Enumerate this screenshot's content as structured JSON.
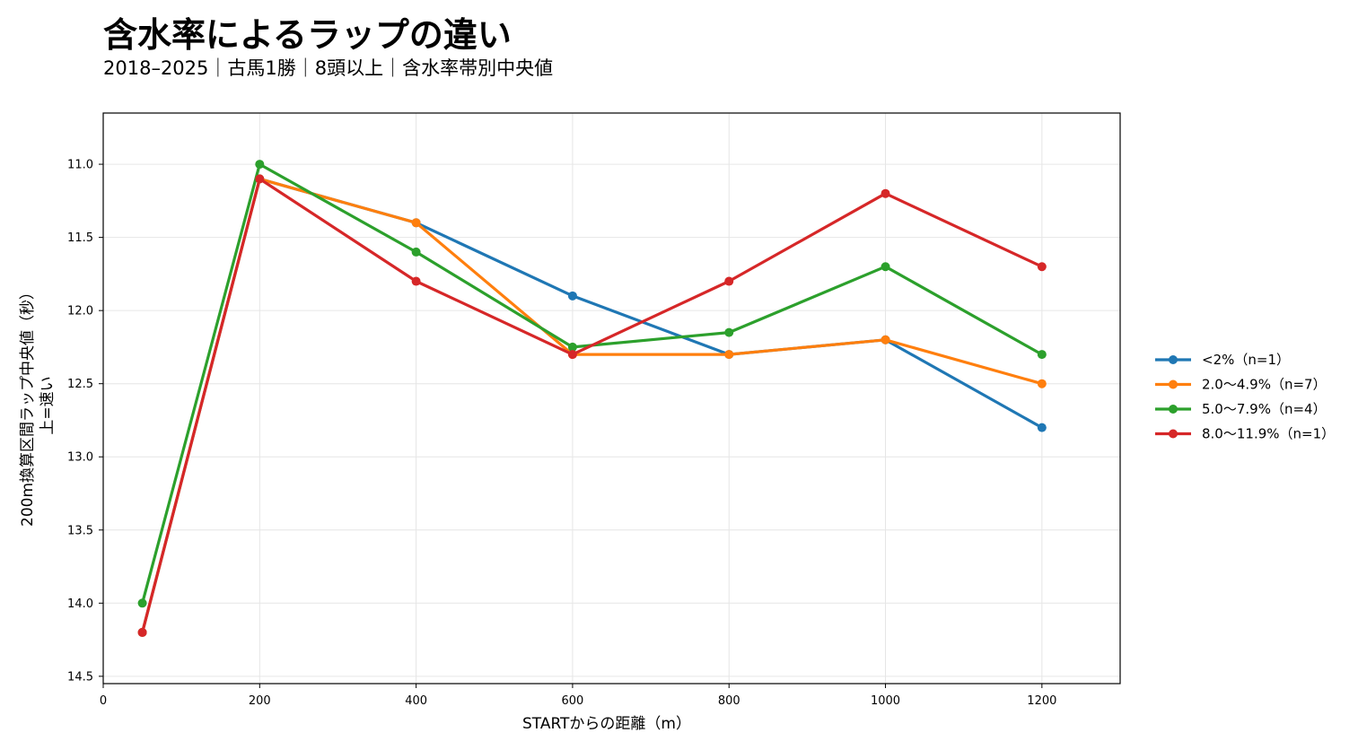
{
  "title": "含水率によるラップの違い",
  "subtitle": "2018–2025｜古馬1勝｜8頭以上｜含水率帯別中央値",
  "chart_data": {
    "type": "line",
    "xlabel": "STARTからの距離（m）",
    "ylabel_line1": "200m換算区間ラップ中央値（秒）",
    "ylabel_line2": "上=速い",
    "xlim": [
      0,
      1300
    ],
    "ylim": [
      14.55,
      10.65
    ],
    "y_inverted": true,
    "xticks": [
      0,
      200,
      400,
      600,
      800,
      1000,
      1200
    ],
    "yticks": [
      11.0,
      11.5,
      12.0,
      12.5,
      13.0,
      13.5,
      14.0,
      14.5
    ],
    "ytick_labels": [
      "11.0",
      "11.5",
      "12.0",
      "12.5",
      "13.0",
      "13.5",
      "14.0",
      "14.5"
    ],
    "grid": true,
    "legend_position": "right",
    "x": [
      50,
      200,
      400,
      600,
      800,
      1000,
      1200
    ],
    "series": [
      {
        "name": "<2%（n=1）",
        "color": "#1f77b4",
        "values": [
          14.2,
          11.1,
          11.4,
          11.9,
          12.3,
          12.2,
          12.8
        ]
      },
      {
        "name": "2.0〜4.9%（n=7）",
        "color": "#ff7f0e",
        "values": [
          14.2,
          11.1,
          11.4,
          12.3,
          12.3,
          12.2,
          12.5
        ]
      },
      {
        "name": "5.0〜7.9%（n=4）",
        "color": "#2ca02c",
        "values": [
          14.0,
          11.0,
          11.6,
          12.25,
          12.15,
          11.7,
          12.3
        ]
      },
      {
        "name": "8.0〜11.9%（n=1）",
        "color": "#d62728",
        "values": [
          14.2,
          11.1,
          11.8,
          12.3,
          11.8,
          11.2,
          11.7
        ]
      }
    ]
  }
}
